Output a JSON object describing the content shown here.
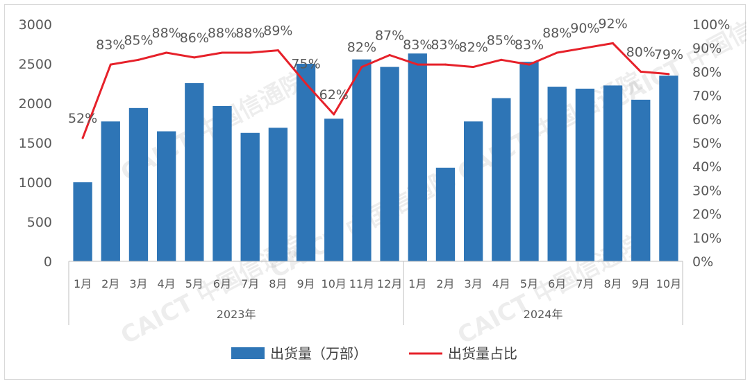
{
  "chart_data": {
    "type": "bar+line",
    "title": "",
    "categories": [
      "1月",
      "2月",
      "3月",
      "4月",
      "5月",
      "6月",
      "7月",
      "8月",
      "9月",
      "10月",
      "11月",
      "12月",
      "1月",
      "2月",
      "3月",
      "4月",
      "5月",
      "6月",
      "7月",
      "8月",
      "9月",
      "10月"
    ],
    "year_groups": [
      {
        "label": "2023年",
        "count": 12
      },
      {
        "label": "2024年",
        "count": 10
      }
    ],
    "series": [
      {
        "name": "出货量（万部）",
        "type": "bar",
        "axis": "left",
        "color": "#2e75b6",
        "values": [
          1000,
          1770,
          1940,
          1645,
          2255,
          1965,
          1625,
          1690,
          2500,
          1805,
          2555,
          2460,
          2630,
          1185,
          1770,
          2065,
          2525,
          2210,
          2185,
          2225,
          2045,
          2350
        ]
      },
      {
        "name": "出货量占比",
        "type": "line",
        "axis": "right",
        "color": "#e6212a",
        "values": [
          52,
          83,
          85,
          88,
          86,
          88,
          88,
          89,
          75,
          62,
          82,
          87,
          83,
          83,
          82,
          85,
          83,
          88,
          90,
          92,
          80,
          79
        ],
        "labels": [
          "52%",
          "83%",
          "85%",
          "88%",
          "86%",
          "88%",
          "88%",
          "89%",
          "75%",
          "62%",
          "82%",
          "87%",
          "83%",
          "83%",
          "82%",
          "85%",
          "83%",
          "88%",
          "90%",
          "92%",
          "80%",
          "79%"
        ]
      }
    ],
    "y_left": {
      "min": 0,
      "max": 3000,
      "step": 500,
      "ticks": [
        "0",
        "500",
        "1000",
        "1500",
        "2000",
        "2500",
        "3000"
      ]
    },
    "y_right": {
      "min": 0,
      "max": 100,
      "step": 10,
      "ticks": [
        "0%",
        "10%",
        "20%",
        "30%",
        "40%",
        "50%",
        "60%",
        "70%",
        "80%",
        "90%",
        "100%"
      ]
    },
    "grid": false,
    "legend": "bottom",
    "watermark": "CAICT 中国信通院"
  }
}
